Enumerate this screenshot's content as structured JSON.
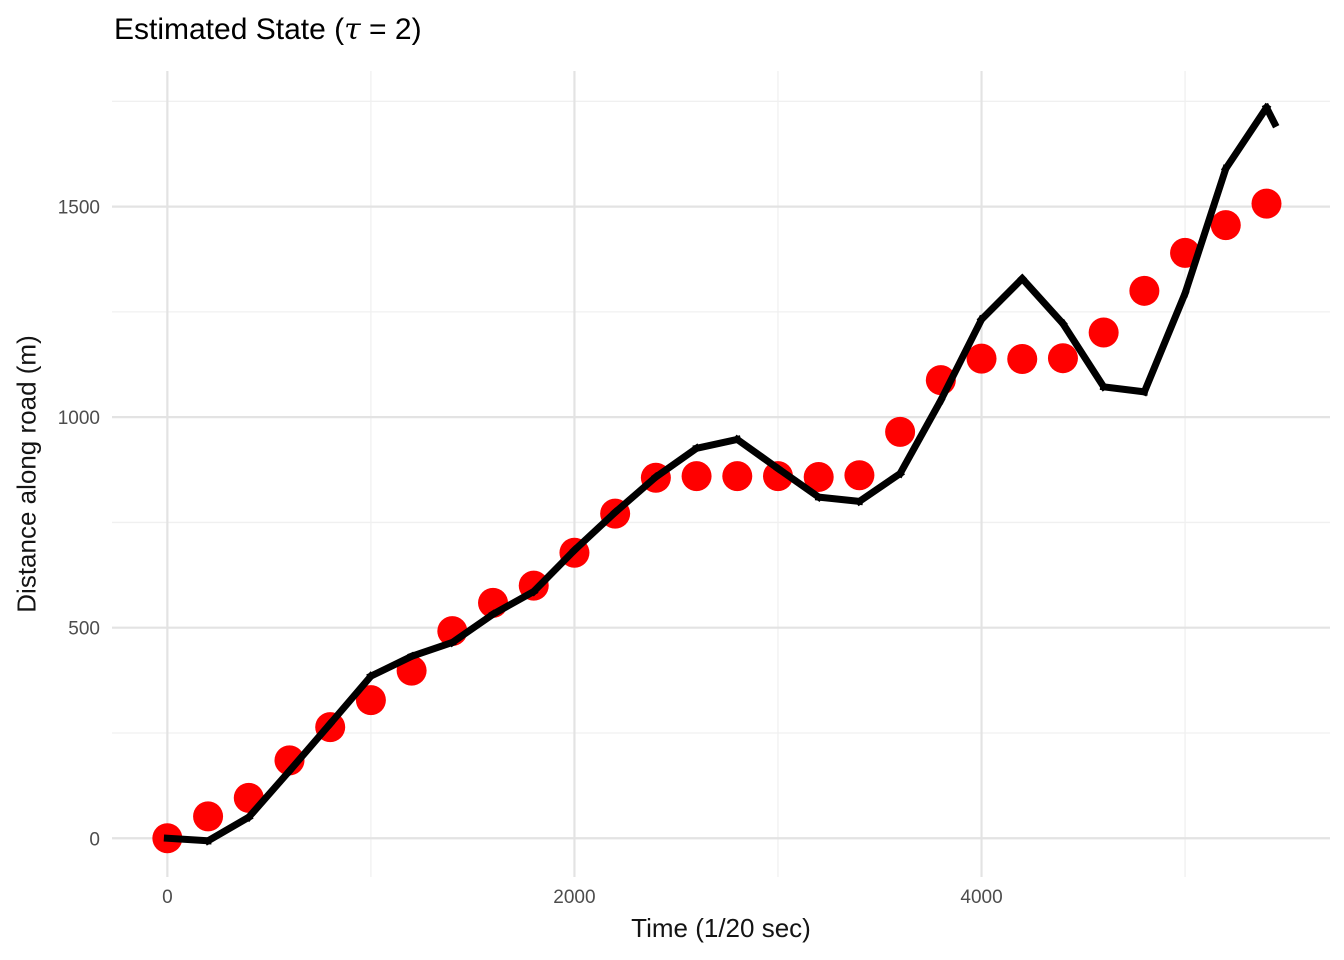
{
  "chart_data": {
    "type": "line+scatter",
    "title": {
      "prefix": "Estimated State (",
      "tau": "τ",
      "suffix": " = 2)"
    },
    "xlabel": "Time (1/20 sec)",
    "ylabel": "Distance along road (m)",
    "xlim": [
      -272,
      5712
    ],
    "ylim": [
      -92,
      1822
    ],
    "x_major_ticks": [
      0,
      2000,
      4000
    ],
    "x_minor_ticks": [
      1000,
      3000,
      5000
    ],
    "y_major_ticks": [
      0,
      500,
      1000,
      1500
    ],
    "y_minor_ticks": [
      250,
      750,
      1250,
      1750
    ],
    "grid": {
      "major_color": "#E3E3E3",
      "minor_color": "#F0F0F0"
    },
    "legend": "none",
    "series": [
      {
        "id": "measurements-scatter",
        "type": "scatter",
        "color": "#FF0000",
        "x": [
          0,
          200,
          400,
          600,
          800,
          1000,
          1200,
          1400,
          1600,
          1800,
          2000,
          2200,
          2400,
          2600,
          2800,
          3000,
          3200,
          3400,
          3600,
          3800,
          4000,
          4200,
          4400,
          4600,
          4800,
          5000,
          5200,
          5400
        ],
        "y": [
          0,
          52,
          96,
          185,
          264,
          328,
          398,
          492,
          559,
          600,
          678,
          771,
          856,
          860,
          860,
          860,
          858,
          862,
          965,
          1088,
          1139,
          1138,
          1140,
          1201,
          1300,
          1390,
          1456,
          1507
        ]
      },
      {
        "id": "estimated-state-line",
        "type": "line",
        "color": "#000000",
        "x": [
          0,
          200,
          400,
          600,
          800,
          1000,
          1200,
          1400,
          1600,
          1800,
          2000,
          2200,
          2400,
          2600,
          2800,
          3000,
          3200,
          3400,
          3600,
          3800,
          4000,
          4200,
          4400,
          4600,
          4800,
          5000,
          5200,
          5400,
          5440
        ],
        "y": [
          0,
          -6,
          50,
          160,
          272,
          385,
          432,
          465,
          532,
          586,
          684,
          774,
          858,
          926,
          947,
          878,
          810,
          800,
          866,
          1040,
          1232,
          1329,
          1222,
          1072,
          1060,
          1294,
          1590,
          1735,
          1697
        ]
      }
    ]
  }
}
